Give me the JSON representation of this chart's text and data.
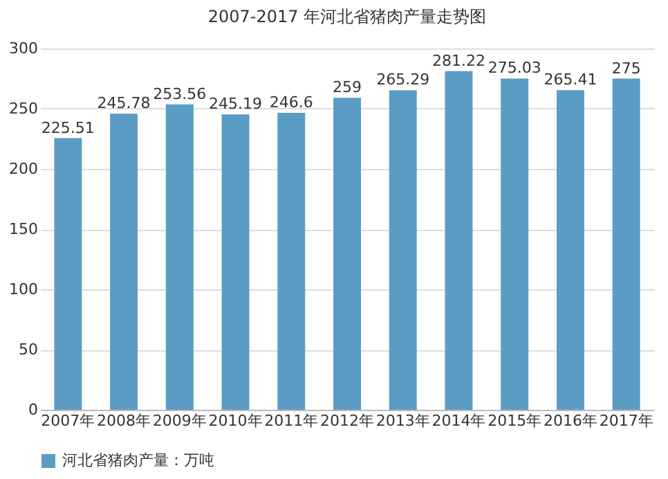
{
  "chart_data": {
    "type": "bar",
    "title": "2007-2017 年河北省猪肉产量走势图",
    "categories": [
      "2007年",
      "2008年",
      "2009年",
      "2010年",
      "2011年",
      "2012年",
      "2013年",
      "2014年",
      "2015年",
      "2016年",
      "2017年"
    ],
    "series": [
      {
        "name": "河北省猪肉产量：万吨",
        "color": "#5b9cc4",
        "values": [
          225.51,
          245.78,
          253.56,
          245.19,
          246.6,
          259,
          265.29,
          281.22,
          275.03,
          265.41,
          275
        ]
      }
    ],
    "ylim": [
      0,
      300
    ],
    "yticks": [
      0,
      50,
      100,
      150,
      200,
      250,
      300
    ],
    "grid": "y",
    "legend": "bottom",
    "data_labels": true
  }
}
